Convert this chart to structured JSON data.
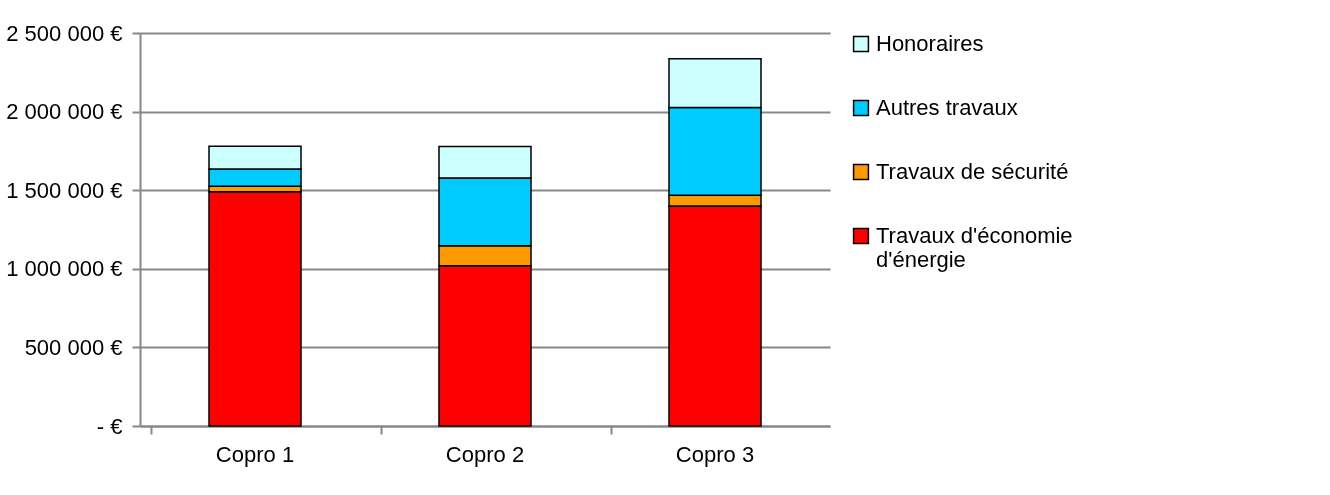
{
  "chart_data": {
    "type": "bar",
    "stacked": true,
    "categories": [
      "Copro 1",
      "Copro 2",
      "Copro 3"
    ],
    "series": [
      {
        "name": "Travaux d'économie d'énergie",
        "color": "#ff0000",
        "values": [
          1490000,
          1020000,
          1400000
        ]
      },
      {
        "name": "Travaux de sécurité",
        "color": "#ff9900",
        "values": [
          35000,
          127000,
          68000
        ]
      },
      {
        "name": "Autres travaux",
        "color": "#00ccff",
        "values": [
          110000,
          431000,
          558000
        ]
      },
      {
        "name": "Honoraires",
        "color": "#ccffff",
        "values": [
          145000,
          200000,
          310000
        ]
      }
    ],
    "ylim": [
      0,
      2500000
    ],
    "yticks": [
      {
        "value": 0,
        "label": "- €"
      },
      {
        "value": 500000,
        "label": "500 000 €"
      },
      {
        "value": 1000000,
        "label": "1 000 000 €"
      },
      {
        "value": 1500000,
        "label": "1 500 000 €"
      },
      {
        "value": 2000000,
        "label": "2 000 000 €"
      },
      {
        "value": 2500000,
        "label": "2 500 000 €"
      }
    ],
    "grid": "y",
    "legend": "right"
  }
}
